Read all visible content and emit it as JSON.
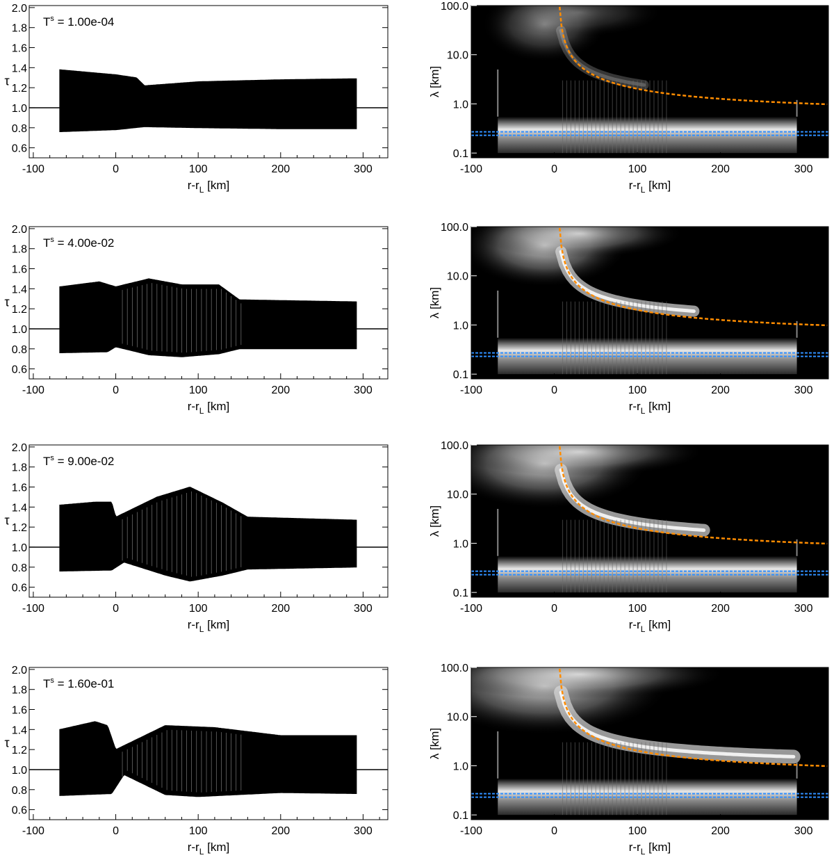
{
  "figure": {
    "tau_axis": {
      "ylabel": "τ",
      "xlabel_main": "r-r",
      "xlabel_sub": "L",
      "xlabel_unit": " [km]",
      "xticks": [
        "-100",
        "0",
        "100",
        "200",
        "300"
      ],
      "yticks": [
        "0.6",
        "0.8",
        "1.0",
        "1.2",
        "1.4",
        "1.6",
        "1.8",
        "2.0"
      ],
      "xlim": [
        -105,
        330
      ],
      "ylim": [
        0.5,
        2.02
      ]
    },
    "wavelet_axis": {
      "ylabel": "λ [km]",
      "xlabel_main": "r-r",
      "xlabel_sub": "L",
      "xlabel_unit": " [km]",
      "xticks": [
        "-100",
        "0",
        "100",
        "200",
        "300"
      ],
      "yticks": [
        "0.1",
        "1.0",
        "10.0",
        "100.0"
      ],
      "xlim": [
        -100,
        330
      ],
      "ylim_log": [
        0.08,
        100
      ]
    },
    "colors": {
      "signal": "#000000",
      "wavelet_background": "#000000",
      "theory_curve": "#ff8c00",
      "reference_lines": "#2f8fff"
    }
  },
  "chart_data": [
    {
      "type": "line",
      "panel": "tau-profile",
      "annotation_label": "T",
      "annotation_sup": "s",
      "annotation_value": "1.00e-04",
      "x_range": [
        -68,
        292
      ],
      "baseline": 1.0,
      "envelope_upper": [
        [
          -68,
          1.38
        ],
        [
          0,
          1.33
        ],
        [
          25,
          1.3
        ],
        [
          35,
          1.22
        ],
        [
          100,
          1.26
        ],
        [
          200,
          1.28
        ],
        [
          292,
          1.29
        ]
      ],
      "envelope_lower": [
        [
          -68,
          0.76
        ],
        [
          0,
          0.78
        ],
        [
          35,
          0.81
        ],
        [
          100,
          0.8
        ],
        [
          200,
          0.79
        ],
        [
          292,
          0.79
        ]
      ]
    },
    {
      "type": "heatmap",
      "panel": "wavelet-power",
      "x_range": [
        -68,
        292
      ],
      "reference_lines": [
        0.23,
        0.27
      ],
      "theory_curve_x0": 5,
      "theory_curve_end_lambda": 0.85
    },
    {
      "type": "line",
      "panel": "tau-profile",
      "annotation_label": "T",
      "annotation_sup": "s",
      "annotation_value": "4.00e-02",
      "x_range": [
        -68,
        292
      ],
      "baseline": 1.0,
      "envelope_upper": [
        [
          -68,
          1.42
        ],
        [
          -20,
          1.47
        ],
        [
          0,
          1.42
        ],
        [
          40,
          1.5
        ],
        [
          80,
          1.44
        ],
        [
          125,
          1.44
        ],
        [
          150,
          1.29
        ],
        [
          292,
          1.27
        ]
      ],
      "envelope_lower": [
        [
          -68,
          0.76
        ],
        [
          -10,
          0.77
        ],
        [
          0,
          0.82
        ],
        [
          40,
          0.74
        ],
        [
          80,
          0.72
        ],
        [
          125,
          0.75
        ],
        [
          150,
          0.8
        ],
        [
          292,
          0.8
        ]
      ]
    },
    {
      "type": "heatmap",
      "panel": "wavelet-power",
      "x_range": [
        -68,
        292
      ],
      "reference_lines": [
        0.23,
        0.27
      ],
      "theory_curve_x0": 5,
      "theory_curve_end_lambda": 0.85
    },
    {
      "type": "line",
      "panel": "tau-profile",
      "annotation_label": "T",
      "annotation_sup": "s",
      "annotation_value": "9.00e-02",
      "x_range": [
        -68,
        292
      ],
      "baseline": 1.0,
      "envelope_upper": [
        [
          -68,
          1.42
        ],
        [
          -25,
          1.45
        ],
        [
          -5,
          1.45
        ],
        [
          0,
          1.3
        ],
        [
          50,
          1.5
        ],
        [
          90,
          1.6
        ],
        [
          130,
          1.44
        ],
        [
          160,
          1.3
        ],
        [
          292,
          1.27
        ]
      ],
      "envelope_lower": [
        [
          -68,
          0.76
        ],
        [
          -5,
          0.77
        ],
        [
          10,
          0.85
        ],
        [
          60,
          0.72
        ],
        [
          90,
          0.66
        ],
        [
          130,
          0.72
        ],
        [
          160,
          0.78
        ],
        [
          292,
          0.8
        ]
      ]
    },
    {
      "type": "heatmap",
      "panel": "wavelet-power",
      "x_range": [
        -68,
        292
      ],
      "reference_lines": [
        0.23,
        0.27
      ],
      "theory_curve_x0": 5,
      "theory_curve_end_lambda": 0.85
    },
    {
      "type": "line",
      "panel": "tau-profile",
      "annotation_label": "T",
      "annotation_sup": "s",
      "annotation_value": "1.60e-01",
      "x_range": [
        -68,
        292
      ],
      "baseline": 1.0,
      "envelope_upper": [
        [
          -68,
          1.4
        ],
        [
          -25,
          1.48
        ],
        [
          -10,
          1.44
        ],
        [
          0,
          1.2
        ],
        [
          60,
          1.44
        ],
        [
          120,
          1.42
        ],
        [
          200,
          1.34
        ],
        [
          292,
          1.34
        ]
      ],
      "envelope_lower": [
        [
          -68,
          0.74
        ],
        [
          -5,
          0.76
        ],
        [
          10,
          0.95
        ],
        [
          60,
          0.75
        ],
        [
          100,
          0.73
        ],
        [
          200,
          0.77
        ],
        [
          292,
          0.76
        ]
      ]
    },
    {
      "type": "heatmap",
      "panel": "wavelet-power",
      "x_range": [
        -68,
        292
      ],
      "reference_lines": [
        0.23,
        0.27
      ],
      "theory_curve_x0": 5,
      "theory_curve_end_lambda": 0.85
    }
  ]
}
